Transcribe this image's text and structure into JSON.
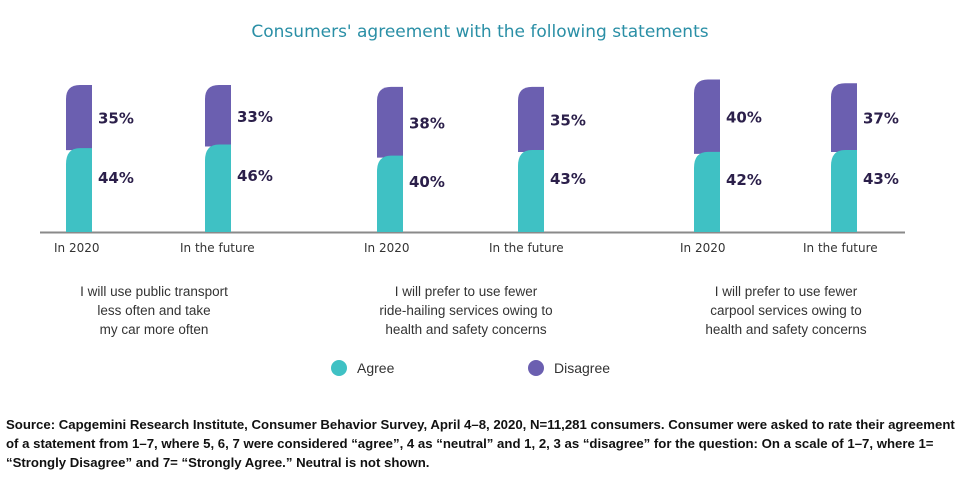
{
  "chart_data": {
    "type": "bar",
    "stacked": true,
    "title": "Consumers' agreement with the following statements",
    "groups": [
      {
        "statement": [
          "I will use public transport",
          "less often and take",
          "my car more often"
        ],
        "categories": [
          "In 2020",
          "In the future"
        ],
        "agree": [
          44,
          46
        ],
        "disagree": [
          35,
          33
        ]
      },
      {
        "statement": [
          "I will prefer to use fewer",
          "ride-hailing services owing to",
          "health and safety concerns"
        ],
        "categories": [
          "In 2020",
          "In the future"
        ],
        "agree": [
          40,
          43
        ],
        "disagree": [
          38,
          35
        ]
      },
      {
        "statement": [
          "I will prefer to use fewer",
          "carpool services owing to",
          "health and safety concerns"
        ],
        "categories": [
          "In 2020",
          "In the future"
        ],
        "agree": [
          42,
          43
        ],
        "disagree": [
          40,
          37
        ]
      }
    ],
    "series": [
      {
        "name": "Agree",
        "color": "#3fc1c4"
      },
      {
        "name": "Disagree",
        "color": "#6b5fb0"
      }
    ],
    "ylim": [
      0,
      100
    ],
    "legend_position": "bottom-center",
    "grid": false
  },
  "source_note": "Source: Capgemini Research Institute, Consumer Behavior Survey, April 4–8, 2020, N=11,281 consumers. Consumer were asked to rate their agreement of a statement from 1–7, where 5, 6, 7 were considered “agree”, 4 as “neutral” and 1, 2, 3 as “disagree” for the question: On a scale of 1–7, where 1= “Strongly Disagree” and 7= “Strongly Agree.” Neutral is not shown."
}
